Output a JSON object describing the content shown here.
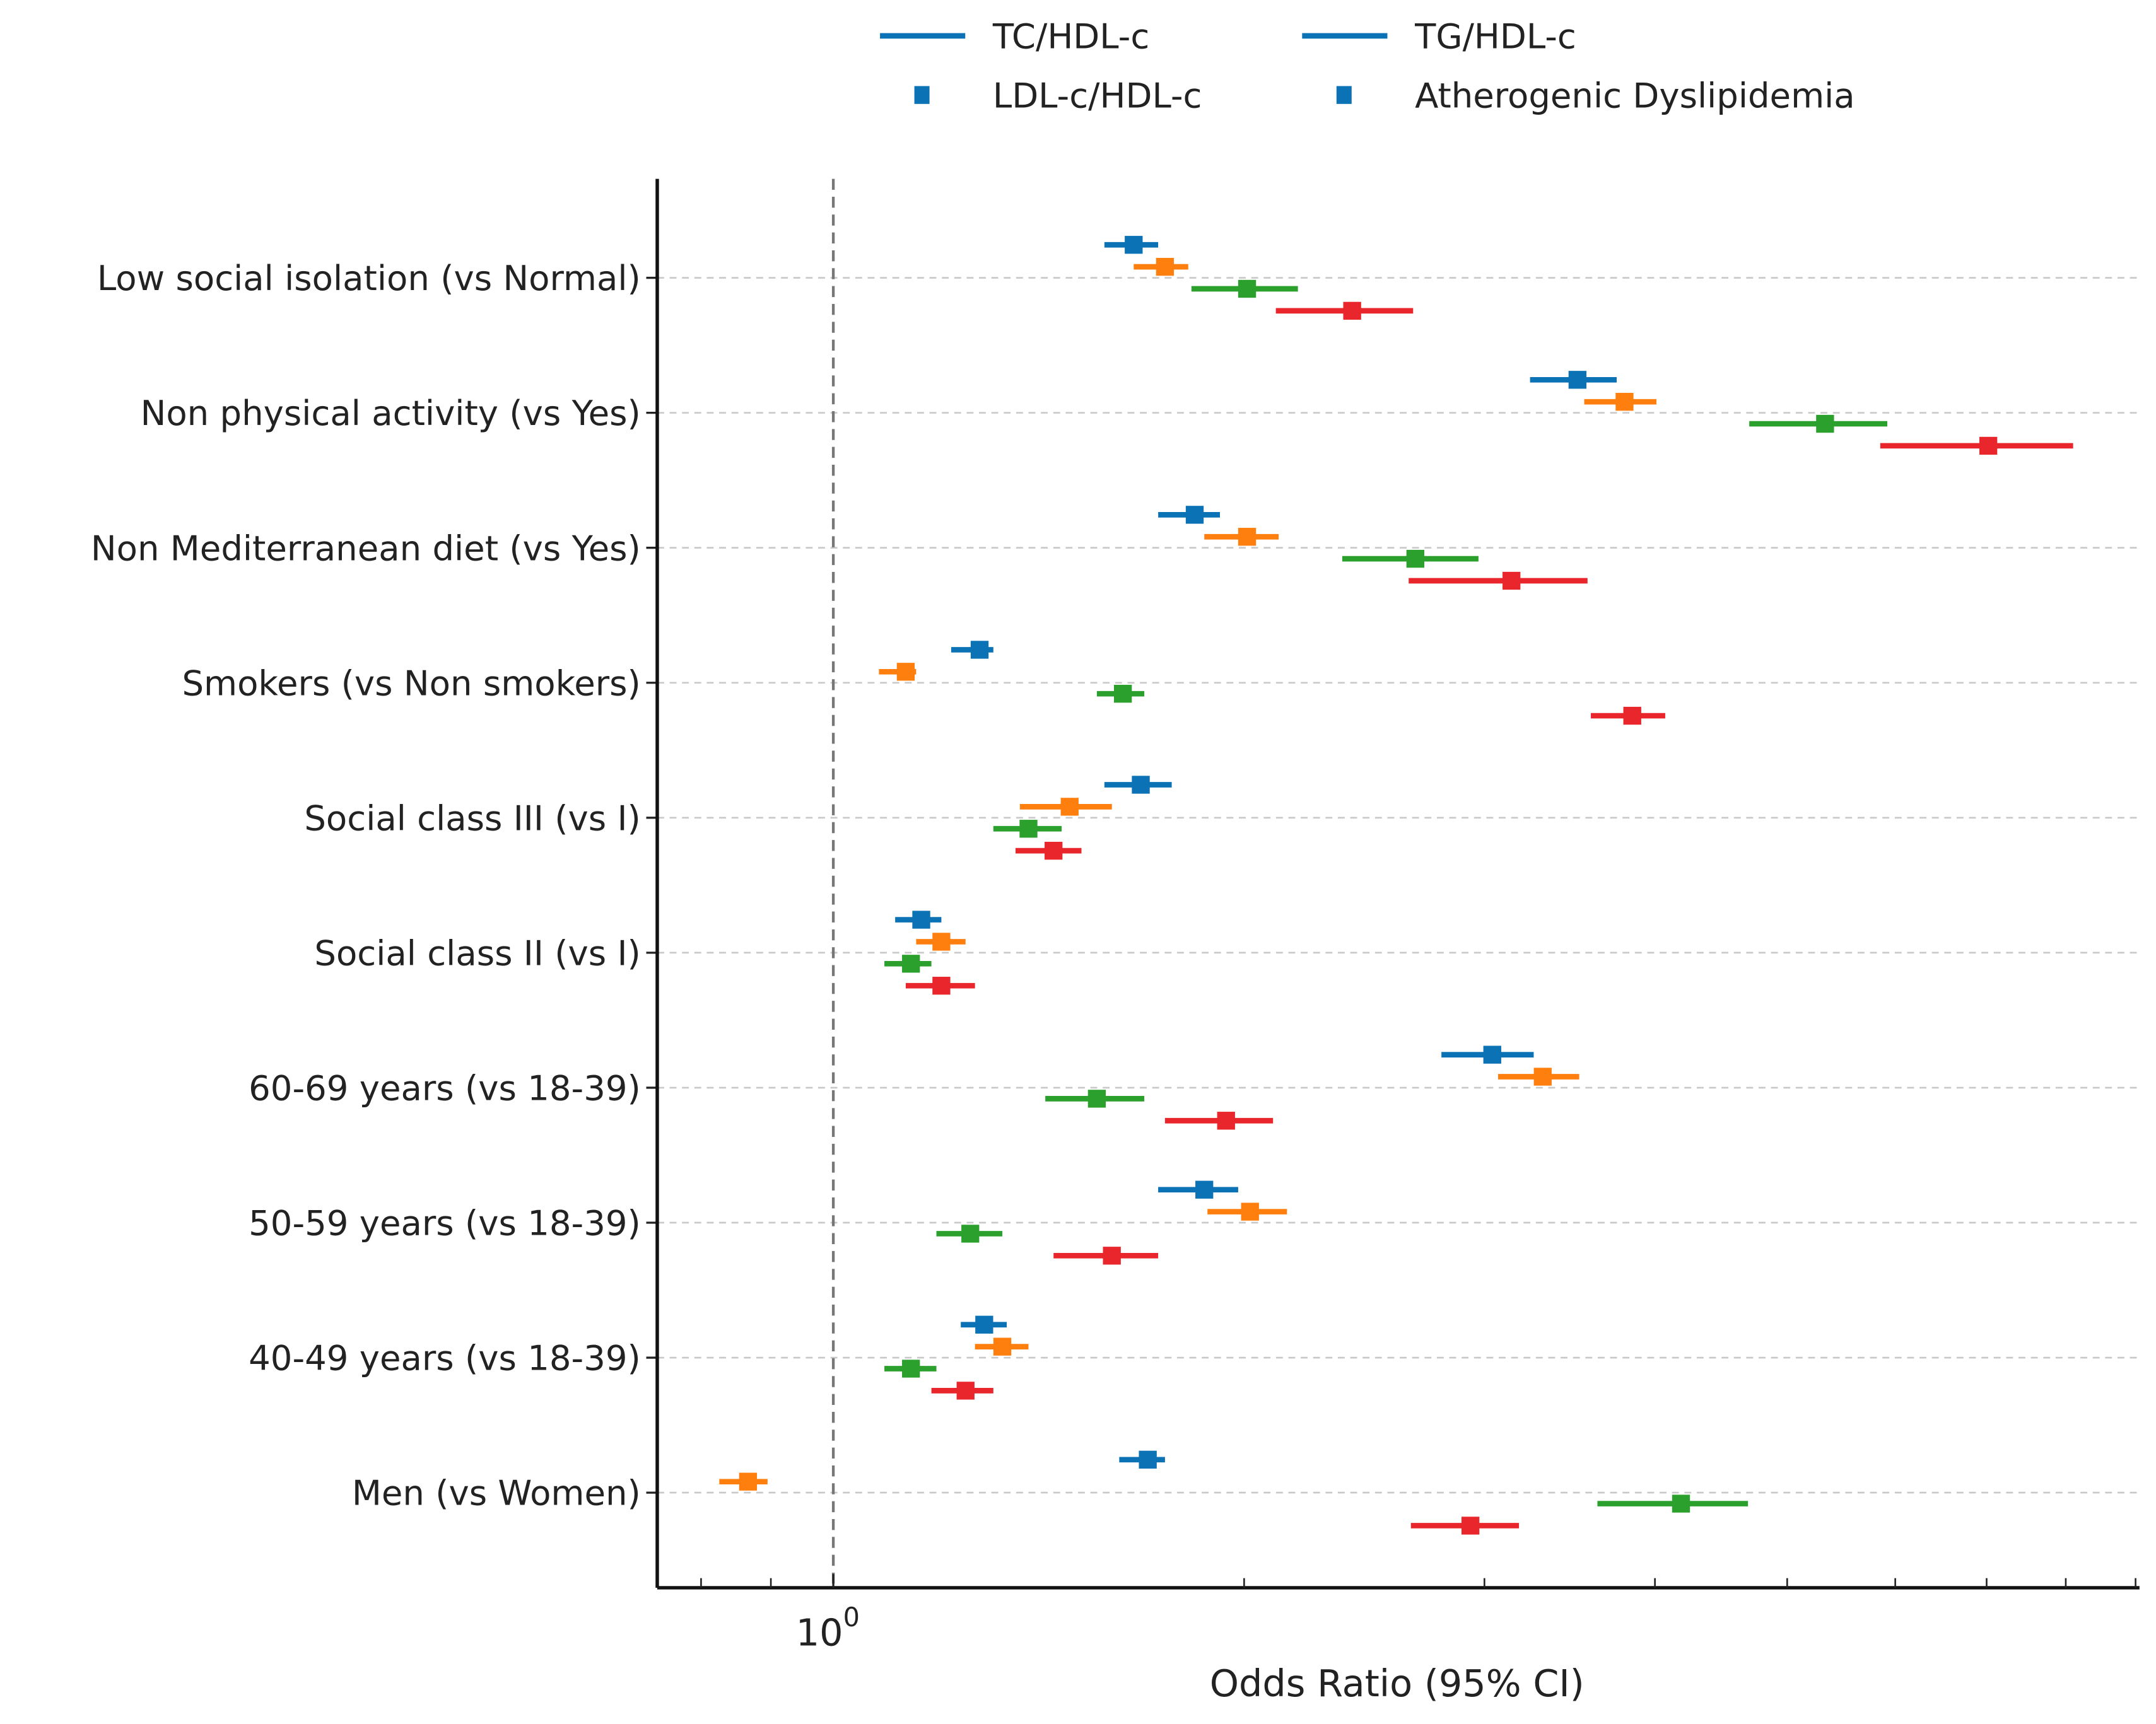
{
  "chart_data": {
    "type": "forest",
    "title": "",
    "xlabel": "Odds Ratio (95% CI)",
    "ylabel": "",
    "xscale": "log",
    "xlim": [
      0.743,
      9.06
    ],
    "x_tick_labels": [
      {
        "value": 1,
        "base": "10",
        "exp": "0"
      }
    ],
    "x_minor_ticks": [
      0.8,
      0.9,
      2,
      3,
      4,
      5,
      6,
      7,
      8,
      9
    ],
    "reference_line": 1,
    "grid": "horizontal dashed",
    "legend_position": "top-center",
    "categories": [
      "Low social isolation (vs Normal)",
      "Non physical activity (vs Yes)",
      "Non Mediterranean diet (vs Yes)",
      "Smokers (vs Non smokers)",
      "Social class III (vs I)",
      "Social class II (vs I)",
      "60-69 years (vs 18-39)",
      "50-59 years (vs 18-39)",
      "40-49 years (vs 18-39)",
      "Men (vs Women)"
    ],
    "series": [
      {
        "name": "TC/HDL-c",
        "color": "#0b72b5",
        "legend_marker": "line",
        "or": [
          1.66,
          3.51,
          1.84,
          1.28,
          1.68,
          1.16,
          3.04,
          1.87,
          1.29,
          1.7
        ],
        "low": [
          1.58,
          3.24,
          1.73,
          1.22,
          1.58,
          1.11,
          2.79,
          1.73,
          1.24,
          1.62
        ],
        "high": [
          1.73,
          3.75,
          1.92,
          1.31,
          1.77,
          1.2,
          3.26,
          1.98,
          1.34,
          1.75
        ]
      },
      {
        "name": "TG/HDL-c",
        "color": "#ff7f0e",
        "legend_marker": "line",
        "or": [
          1.75,
          3.8,
          2.01,
          1.13,
          1.49,
          1.2,
          3.31,
          2.02,
          1.33,
          0.866
        ],
        "low": [
          1.66,
          3.55,
          1.87,
          1.08,
          1.37,
          1.15,
          3.07,
          1.88,
          1.27,
          0.825
        ],
        "high": [
          1.82,
          4.01,
          2.12,
          1.15,
          1.6,
          1.25,
          3.52,
          2.15,
          1.39,
          0.895
        ]
      },
      {
        "name": "LDL-c/HDL-c",
        "color": "#2ca02c",
        "legend_marker": "square",
        "or": [
          2.01,
          5.33,
          2.67,
          1.63,
          1.39,
          1.14,
          1.56,
          1.26,
          1.14,
          4.18
        ],
        "low": [
          1.83,
          4.69,
          2.36,
          1.56,
          1.31,
          1.09,
          1.43,
          1.19,
          1.09,
          3.63
        ],
        "high": [
          2.19,
          5.92,
          2.97,
          1.69,
          1.47,
          1.18,
          1.69,
          1.33,
          1.19,
          4.68
        ]
      },
      {
        "name": "Atherogenic Dyslipidemia",
        "color": "#e8262b",
        "legend_marker": "square",
        "or": [
          2.4,
          7.02,
          3.14,
          3.85,
          1.45,
          1.2,
          1.94,
          1.6,
          1.25,
          2.93
        ],
        "low": [
          2.11,
          5.85,
          2.64,
          3.59,
          1.36,
          1.13,
          1.75,
          1.45,
          1.18,
          2.65
        ],
        "high": [
          2.66,
          8.1,
          3.57,
          4.07,
          1.52,
          1.27,
          2.1,
          1.73,
          1.31,
          3.18
        ]
      }
    ],
    "legend_color": "#0b72b5"
  }
}
